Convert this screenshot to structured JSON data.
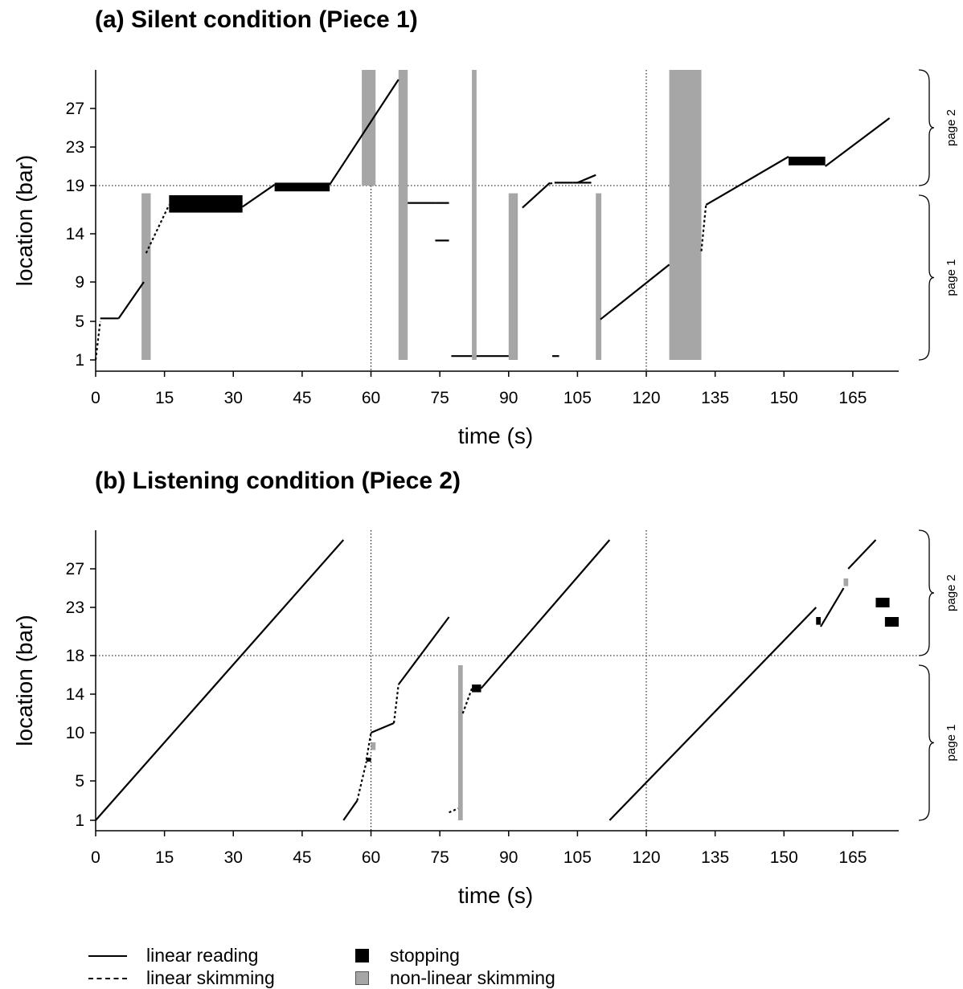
{
  "chart_data": [
    {
      "type": "line",
      "title": "(a) Silent condition (Piece 1)",
      "xlabel": "time (s)",
      "ylabel": "location (bar)",
      "xlim": [
        0,
        175
      ],
      "ylim": [
        1,
        30
      ],
      "xticks": [
        0,
        15,
        30,
        45,
        60,
        75,
        90,
        105,
        120,
        135,
        150,
        165
      ],
      "yticks": [
        1,
        5,
        9,
        14,
        19,
        23,
        27
      ],
      "vlines": [
        60,
        120
      ],
      "hline": 19,
      "page_labels": [
        {
          "text": "page 1",
          "from": 1,
          "to": 19
        },
        {
          "text": "page 2",
          "from": 19,
          "to": 30
        }
      ],
      "linear_reading": [
        [
          [
            1,
            5.3
          ],
          [
            5,
            5.3
          ]
        ],
        [
          [
            5,
            5.3
          ],
          [
            10.5,
            9
          ]
        ],
        [
          [
            32,
            16.8
          ],
          [
            39,
            19.1
          ]
        ],
        [
          [
            51,
            19.1
          ],
          [
            66,
            30
          ]
        ],
        [
          [
            77,
            17.2
          ],
          [
            74,
            17.2
          ]
        ],
        [
          [
            68,
            17.2
          ],
          [
            74,
            17.2
          ]
        ],
        [
          [
            74,
            13.3
          ],
          [
            77,
            13.3
          ]
        ],
        [
          [
            77.5,
            1.4
          ],
          [
            82,
            1.4
          ]
        ],
        [
          [
            83,
            1.4
          ],
          [
            90,
            1.4
          ]
        ],
        [
          [
            93,
            16.7
          ],
          [
            99,
            19.3
          ]
        ],
        [
          [
            99.5,
            1.4
          ],
          [
            101,
            1.4
          ]
        ],
        [
          [
            100,
            19.3
          ],
          [
            104,
            19.3
          ]
        ],
        [
          [
            104,
            19.3
          ],
          [
            108,
            19.3
          ]
        ],
        [
          [
            105,
            19.3
          ],
          [
            109,
            20.1
          ]
        ],
        [
          [
            110,
            5.2
          ],
          [
            125,
            10.8
          ]
        ],
        [
          [
            133,
            17
          ],
          [
            151,
            22
          ]
        ],
        [
          [
            159,
            21
          ],
          [
            173,
            26
          ]
        ]
      ],
      "linear_skimming": [
        [
          [
            0,
            1
          ],
          [
            1,
            5
          ]
        ],
        [
          [
            11,
            12
          ],
          [
            16,
            17
          ]
        ],
        [
          [
            99,
            19.2
          ],
          [
            100,
            19.3
          ]
        ],
        [
          [
            132,
            12.2
          ],
          [
            133,
            17
          ]
        ]
      ],
      "stopping": [
        [
          16,
          32,
          16.2,
          18
        ],
        [
          39,
          51,
          18.4,
          19.3
        ],
        [
          151,
          159,
          21.1,
          22
        ]
      ],
      "nonlinear_skimming": [
        [
          10,
          12,
          1,
          18.2
        ],
        [
          58,
          61,
          19,
          31
        ],
        [
          66,
          68,
          1,
          31
        ],
        [
          82,
          83,
          1,
          31
        ],
        [
          90,
          92,
          1,
          18.2
        ],
        [
          109,
          110.2,
          1,
          18.2
        ],
        [
          125,
          132,
          1,
          31
        ]
      ]
    },
    {
      "type": "line",
      "title": "(b) Listening condition (Piece 2)",
      "xlabel": "time (s)",
      "ylabel": "location (bar)",
      "xlim": [
        0,
        175
      ],
      "ylim": [
        1,
        30
      ],
      "xticks": [
        0,
        15,
        30,
        45,
        60,
        75,
        90,
        105,
        120,
        135,
        150,
        165
      ],
      "yticks": [
        1,
        5,
        10,
        14,
        18,
        23,
        27
      ],
      "vlines": [
        60,
        120
      ],
      "hline": 18,
      "page_labels": [
        {
          "text": "page 1",
          "from": 1,
          "to": 18
        },
        {
          "text": "page 2",
          "from": 18,
          "to": 30
        }
      ],
      "linear_reading": [
        [
          [
            0,
            1
          ],
          [
            54,
            30
          ]
        ],
        [
          [
            54,
            1
          ],
          [
            57,
            3
          ]
        ],
        [
          [
            60,
            10
          ],
          [
            65,
            11
          ]
        ],
        [
          [
            66,
            15
          ],
          [
            77,
            22
          ]
        ],
        [
          [
            84,
            14.6
          ],
          [
            112,
            30
          ]
        ],
        [
          [
            112,
            1
          ],
          [
            157,
            23
          ]
        ],
        [
          [
            158,
            21
          ],
          [
            163,
            25
          ]
        ],
        [
          [
            164,
            27
          ],
          [
            170,
            30
          ]
        ]
      ],
      "linear_skimming": [
        [
          [
            57,
            3
          ],
          [
            59,
            7
          ]
        ],
        [
          [
            59,
            7.2
          ],
          [
            60,
            10
          ]
        ],
        [
          [
            65,
            11
          ],
          [
            66,
            15
          ]
        ],
        [
          [
            77,
            1.8
          ],
          [
            79,
            2.2
          ]
        ],
        [
          [
            80,
            12
          ],
          [
            82,
            14.6
          ]
        ]
      ],
      "stopping": [
        [
          59,
          60,
          7,
          7.4
        ],
        [
          82,
          84,
          14.2,
          15
        ],
        [
          157,
          158,
          21.2,
          22
        ],
        [
          170,
          173,
          23,
          24
        ],
        [
          172,
          175,
          21,
          22
        ]
      ],
      "nonlinear_skimming": [
        [
          60,
          61,
          8.2,
          9
        ],
        [
          79,
          80,
          1,
          17
        ],
        [
          163,
          164,
          25.2,
          26
        ]
      ]
    }
  ],
  "legend": {
    "linear_reading": "linear reading",
    "linear_skimming": "linear skimming",
    "stopping": "stopping",
    "nonlinear_skimming": "non-linear skimming"
  },
  "colors": {
    "stopping": "#000000",
    "nonlinear_skimming": "#a6a6a6"
  }
}
